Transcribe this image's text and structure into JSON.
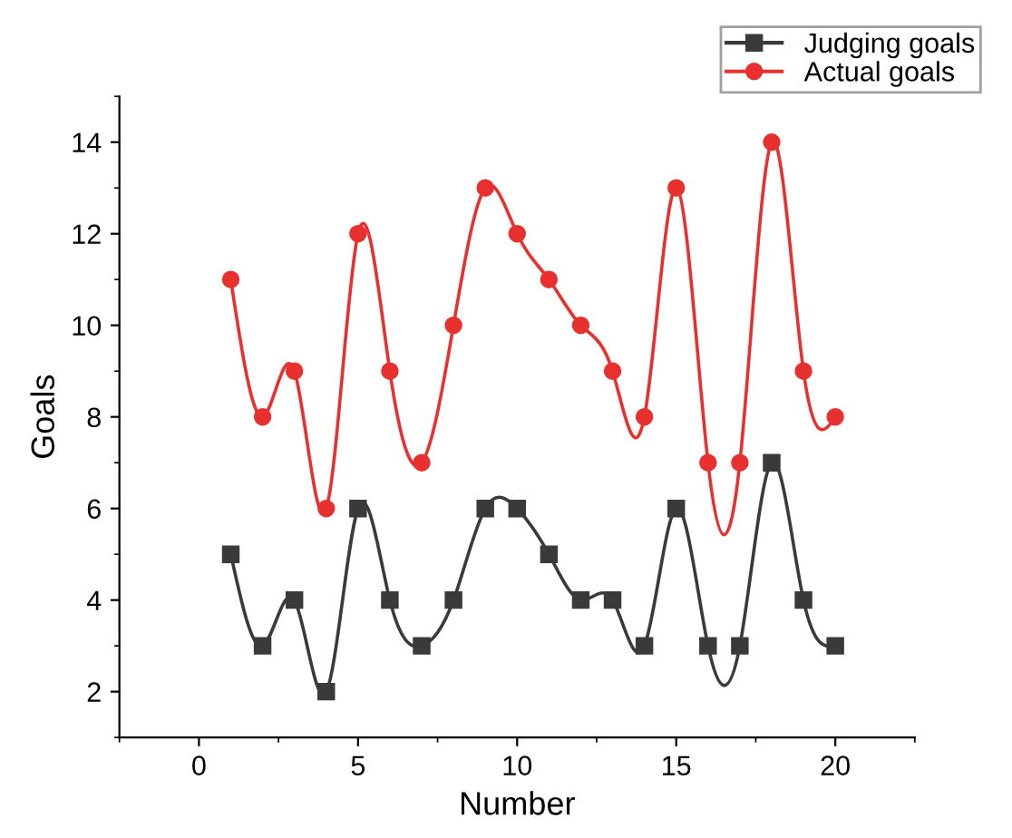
{
  "chart_data": {
    "type": "line",
    "xlabel": "Number",
    "ylabel": "Goals",
    "x": [
      1,
      2,
      3,
      4,
      5,
      6,
      7,
      8,
      9,
      10,
      11,
      12,
      13,
      14,
      15,
      16,
      17,
      18,
      19,
      20
    ],
    "series": [
      {
        "name": "Judging goals",
        "color": "#3a3a3a",
        "marker": "square",
        "values": [
          5,
          3,
          4,
          2,
          6,
          4,
          3,
          4,
          6,
          6,
          5,
          4,
          4,
          3,
          6,
          3,
          3,
          7,
          4,
          3
        ]
      },
      {
        "name": "Actual goals",
        "color": "#e8302f",
        "marker": "circle",
        "values": [
          11,
          8,
          9,
          6,
          12,
          9,
          7,
          10,
          13,
          12,
          11,
          10,
          9,
          8,
          13,
          7,
          7,
          14,
          9,
          8
        ]
      }
    ],
    "xlim": [
      -2.5,
      22.5
    ],
    "xticks": [
      0,
      5,
      10,
      15,
      20
    ],
    "ylim": [
      1,
      15
    ],
    "yticks": [
      2,
      4,
      6,
      8,
      10,
      12,
      14
    ],
    "grid": false,
    "legend": "top right",
    "line_style": "solid"
  }
}
